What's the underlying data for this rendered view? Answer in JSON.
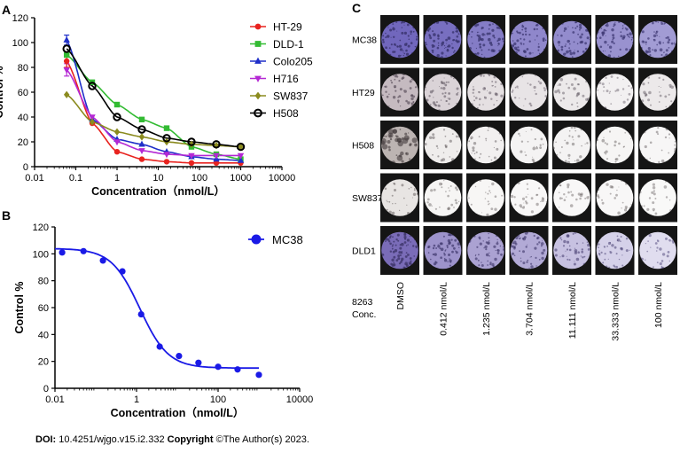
{
  "panel_labels": {
    "a": "A",
    "b": "B",
    "c": "C"
  },
  "footer": {
    "doi_label": "DOI:",
    "doi_value": "10.4251/wjgo.v15.i2.332",
    "copyright_label": "Copyright",
    "copyright_value": "©The Author(s) 2023."
  },
  "chart_data": [
    {
      "type": "scatter",
      "title": "",
      "xlabel": "Concentration（nmol/L）",
      "ylabel": "Control %",
      "xscale": "log",
      "xlim": [
        0.01,
        10000
      ],
      "ylim": [
        0,
        120
      ],
      "xticks": [
        0.01,
        0.1,
        1,
        10,
        100,
        1000,
        10000
      ],
      "xtick_labels": [
        "0.01",
        "0.1",
        "1",
        "10",
        "100",
        "1000",
        "10000"
      ],
      "yticks": [
        0,
        20,
        40,
        60,
        80,
        100,
        120
      ],
      "ytick_labels": [
        "0",
        "20",
        "40",
        "60",
        "80",
        "100",
        "120"
      ],
      "legend_position": "top-right",
      "x": [
        0.06,
        0.25,
        1,
        4,
        16,
        64,
        256,
        1000
      ],
      "series": [
        {
          "name": "HT-29",
          "color": "#e8231f",
          "marker": "circle",
          "values": [
            85,
            35,
            12,
            6,
            4,
            3,
            3,
            3
          ],
          "fit": [
            0.07,
            0.45,
            3,
            90,
            80,
            0.3,
            1
          ]
        },
        {
          "name": "DLD-1",
          "color": "#33bb33",
          "marker": "square",
          "values": [
            90,
            68,
            50,
            38,
            31,
            16,
            10,
            6
          ],
          "fit": [
            0.2,
            1.5,
            5,
            98,
            92,
            2.5,
            1
          ]
        },
        {
          "name": "Colo205",
          "color": "#1f2fc9",
          "marker": "triangle",
          "values": [
            102,
            38,
            22,
            18,
            12,
            8,
            6,
            5
          ],
          "fit": [
            0.3,
            0.8,
            7,
            96,
            86,
            0.18,
            1
          ]
        },
        {
          "name": "H716",
          "color": "#b428d4",
          "marker": "triangle-down",
          "values": [
            78,
            40,
            20,
            13,
            10,
            9,
            9,
            9
          ],
          "fit": [
            0.5,
            0.8,
            9,
            82,
            71,
            0.15,
            1
          ]
        },
        {
          "name": "SW837",
          "color": "#8b8b1f",
          "marker": "diamond",
          "values": [
            58,
            36,
            28,
            24,
            20,
            18,
            17,
            16
          ],
          "fit": [
            0.8,
            1,
            14,
            66,
            51,
            0.1,
            0.6
          ]
        },
        {
          "name": "H508",
          "color": "#000000",
          "marker": "circle-open",
          "values": [
            95,
            65,
            40,
            30,
            23,
            20,
            18,
            16
          ],
          "fit": [
            0.01,
            1,
            14,
            90,
            85,
            0.7,
            0.8
          ]
        }
      ],
      "error_bars": [
        {
          "series": "Colo205",
          "x": 0.06,
          "low": 98,
          "high": 106
        },
        {
          "series": "H716",
          "x": 0.06,
          "low": 73,
          "high": 83
        },
        {
          "series": "HT-29",
          "x": 0.06,
          "low": 80,
          "high": 90
        }
      ]
    },
    {
      "type": "scatter",
      "title": "",
      "xlabel": "Concentration（nmol/L）",
      "ylabel": "Control %",
      "xscale": "log",
      "xlim": [
        0.01,
        10000
      ],
      "ylim": [
        0,
        120
      ],
      "xticks": [
        0.01,
        1,
        100,
        10000
      ],
      "xtick_labels": [
        "0.01",
        "1",
        "100",
        "10000"
      ],
      "yticks": [
        0,
        20,
        40,
        60,
        80,
        100,
        120
      ],
      "ytick_labels": [
        "0",
        "20",
        "40",
        "60",
        "80",
        "100",
        "120"
      ],
      "legend_position": "top-right",
      "series": [
        {
          "name": "MC38",
          "color": "#1a1ae6",
          "marker": "circle",
          "x": [
            0.015,
            0.05,
            0.15,
            0.45,
            1.3,
            3.7,
            11,
            33,
            100,
            300,
            1000
          ],
          "values": [
            101,
            102,
            95,
            87,
            55,
            31,
            24,
            19,
            16,
            14,
            10
          ],
          "fit": {
            "bottom": 15,
            "top": 104,
            "ic50": 1.2,
            "hill": 1.25
          }
        }
      ]
    }
  ],
  "plate_grid": {
    "cell_lines": [
      "MC38",
      "HT29",
      "H508",
      "SW837",
      "DLD1"
    ],
    "conc_label_line1": "8263",
    "conc_label_line2": "Conc.",
    "concentrations": [
      "DMSO",
      "0.412 nmol/L",
      "1.235 nmol/L",
      "3.704 nmol/L",
      "11.111 nmol/L",
      "33.333 nmol/L",
      "100 nmol/L"
    ],
    "stain_density": [
      [
        0.95,
        0.9,
        0.82,
        0.75,
        0.72,
        0.68,
        0.62
      ],
      [
        0.55,
        0.35,
        0.25,
        0.22,
        0.18,
        0.12,
        0.18
      ],
      [
        0.5,
        0.12,
        0.1,
        0.08,
        0.08,
        0.07,
        0.06
      ],
      [
        0.2,
        0.08,
        0.07,
        0.06,
        0.06,
        0.06,
        0.05
      ],
      [
        0.95,
        0.7,
        0.6,
        0.55,
        0.4,
        0.3,
        0.22
      ]
    ]
  }
}
